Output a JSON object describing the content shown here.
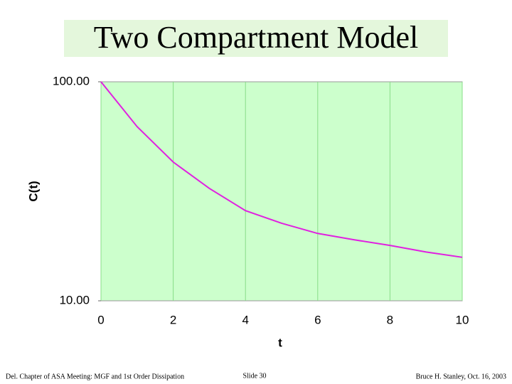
{
  "chart_data": {
    "type": "line",
    "title": "Two Compartment Model",
    "x": [
      0,
      1,
      2,
      3,
      4,
      5,
      6,
      7,
      8,
      9,
      10
    ],
    "series": [
      {
        "name": "C(t)",
        "color": "#e020e0",
        "values": [
          100,
          62.4,
          43,
          32.6,
          25.8,
          22.6,
          20.3,
          19,
          17.9,
          16.7,
          15.8
        ]
      }
    ],
    "xlabel": "t",
    "ylabel": "C(t)",
    "xlim": [
      0,
      10
    ],
    "xticks": [
      0,
      2,
      4,
      6,
      8,
      10
    ],
    "ylim": [
      10,
      100
    ],
    "yticks": [
      {
        "value": 10,
        "label": "10.00"
      },
      {
        "value": 100,
        "label": "100.00"
      }
    ],
    "log_y": true,
    "grid": true
  },
  "footer": {
    "left": "Del. Chapter of ASA Meeting: MGF and 1st Order Dissipation",
    "center": "Slide 30",
    "right": "Bruce H. Stanley, Oct. 16, 2003"
  }
}
